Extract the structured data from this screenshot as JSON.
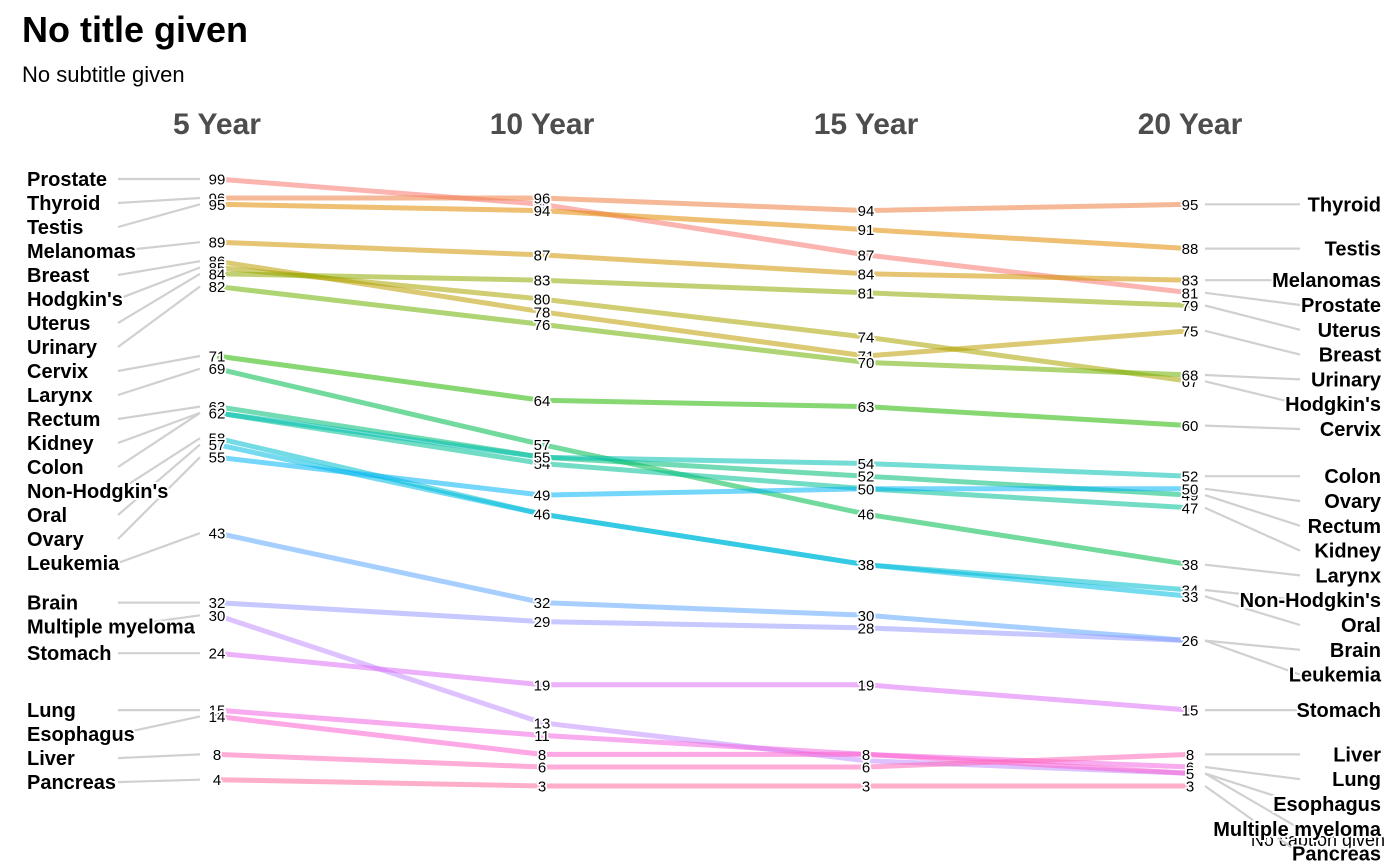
{
  "chart_data": {
    "type": "slopegraph",
    "title": "No title given",
    "subtitle": "No subtitle given",
    "caption": "No caption given",
    "categories": [
      "5 Year",
      "10 Year",
      "15 Year",
      "20 Year"
    ],
    "ylim": [
      3,
      99
    ],
    "series": [
      {
        "name": "Prostate",
        "values": [
          99,
          95,
          87,
          81
        ],
        "color": "#F8766D"
      },
      {
        "name": "Thyroid",
        "values": [
          96,
          96,
          94,
          95
        ],
        "color": "#EE8043"
      },
      {
        "name": "Testis",
        "values": [
          95,
          94,
          91,
          88
        ],
        "color": "#E18A00"
      },
      {
        "name": "Melanomas",
        "values": [
          89,
          87,
          84,
          83
        ],
        "color": "#D09400"
      },
      {
        "name": "Breast",
        "values": [
          86,
          78,
          71,
          75
        ],
        "color": "#BE9C00"
      },
      {
        "name": "Hodgkin's",
        "values": [
          85,
          80,
          74,
          67
        ],
        "color": "#A9A400"
      },
      {
        "name": "Uterus",
        "values": [
          84,
          83,
          81,
          79
        ],
        "color": "#8FAA00"
      },
      {
        "name": "Urinary",
        "values": [
          82,
          76,
          70,
          68
        ],
        "color": "#6BB100"
      },
      {
        "name": "Cervix",
        "values": [
          71,
          64,
          63,
          60
        ],
        "color": "#24B700"
      },
      {
        "name": "Larynx",
        "values": [
          69,
          57,
          46,
          38
        ],
        "color": "#00BB4E"
      },
      {
        "name": "Rectum",
        "values": [
          63,
          55,
          52,
          49
        ],
        "color": "#00BE75"
      },
      {
        "name": "Kidney",
        "values": [
          62,
          54,
          50,
          47
        ],
        "color": "#00BF96"
      },
      {
        "name": "Colon",
        "values": [
          62,
          55,
          54,
          52
        ],
        "color": "#00C0B3"
      },
      {
        "name": "Non-Hodgkin's",
        "values": [
          58,
          46,
          38,
          34
        ],
        "color": "#00BECD"
      },
      {
        "name": "Oral",
        "values": [
          57,
          46,
          38,
          33
        ],
        "color": "#00BBE3"
      },
      {
        "name": "Ovary",
        "values": [
          55,
          49,
          50,
          50
        ],
        "color": "#00B5F5"
      },
      {
        "name": "Leukemia",
        "values": [
          43,
          32,
          30,
          26
        ],
        "color": "#5CA7FF"
      },
      {
        "name": "Brain",
        "values": [
          32,
          29,
          28,
          26
        ],
        "color": "#989AFF"
      },
      {
        "name": "Multiple myeloma",
        "values": [
          30,
          13,
          7,
          5
        ],
        "color": "#C18FFF"
      },
      {
        "name": "Stomach",
        "values": [
          24,
          19,
          19,
          15
        ],
        "color": "#DF70F8"
      },
      {
        "name": "Lung",
        "values": [
          15,
          11,
          8,
          6
        ],
        "color": "#F266E0"
      },
      {
        "name": "Esophagus",
        "values": [
          14,
          8,
          8,
          5
        ],
        "color": "#FE61CF"
      },
      {
        "name": "Liver",
        "values": [
          8,
          6,
          6,
          8
        ],
        "color": "#FF67B8"
      },
      {
        "name": "Pancreas",
        "values": [
          4,
          3,
          3,
          3
        ],
        "color": "#FF6C9C"
      }
    ],
    "left_labels": [
      "Prostate",
      "Thyroid",
      "Testis",
      "Melanomas",
      "Breast",
      "Hodgkin's",
      "Uterus",
      "Urinary",
      "Cervix",
      "Larynx",
      "Rectum",
      "Kidney",
      "Colon",
      "Non-Hodgkin's",
      "Oral",
      "Ovary",
      "Leukemia",
      "Brain",
      "Multiple myeloma",
      "Stomach",
      "Lung",
      "Esophagus",
      "Liver",
      "Pancreas"
    ],
    "right_labels": [
      "Thyroid",
      "Testis",
      "Melanomas",
      "Prostate",
      "Uterus",
      "Breast",
      "Urinary",
      "Hodgkin's",
      "Cervix",
      "Colon",
      "Ovary",
      "Rectum",
      "Kidney",
      "Larynx",
      "Non-Hodgkin's",
      "Oral",
      "Brain",
      "Leukemia",
      "Stomach",
      "Liver",
      "Lung",
      "Esophagus",
      "Multiple myeloma",
      "Pancreas"
    ]
  }
}
